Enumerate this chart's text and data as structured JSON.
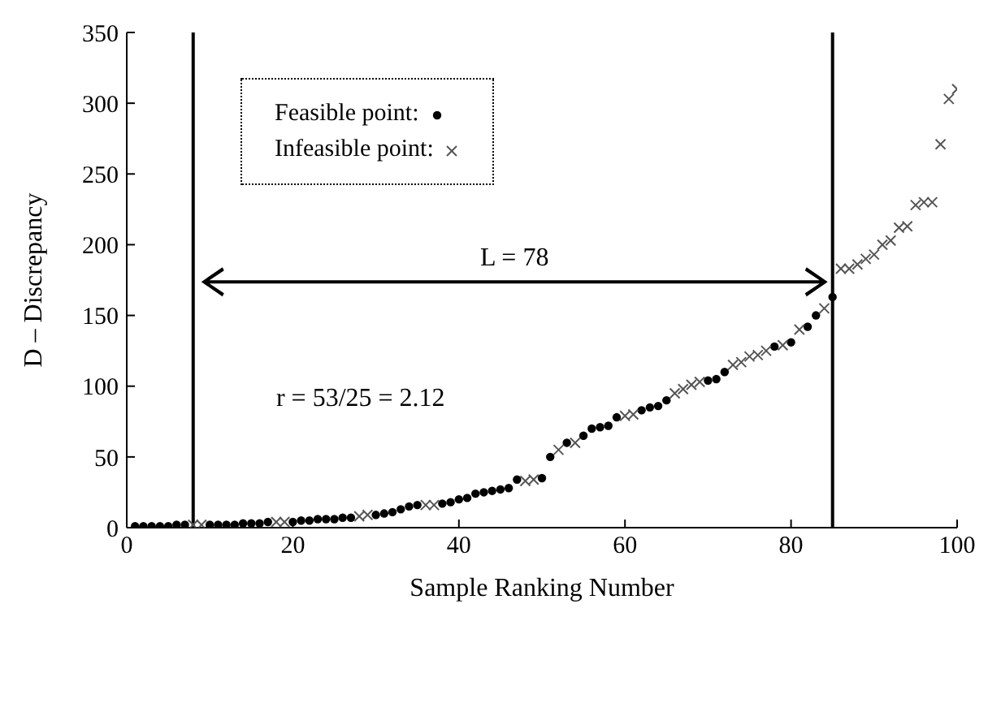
{
  "chart_data": {
    "type": "scatter",
    "xlabel": "Sample Ranking Number",
    "ylabel": "D – Discrepancy",
    "xlim": [
      0,
      100
    ],
    "xticks": [
      0,
      20,
      40,
      60,
      80,
      100
    ],
    "ylim": [
      0,
      350
    ],
    "yticks": [
      0,
      50,
      100,
      150,
      200,
      250,
      300,
      350
    ],
    "grid": false,
    "legend": "top left",
    "series": [
      {
        "name": "Feasible point:",
        "color": "#000000",
        "marker": "circle",
        "x": [
          1,
          2,
          3,
          4,
          5,
          6,
          7,
          10,
          11,
          12,
          13,
          14,
          15,
          16,
          17,
          20,
          21,
          22,
          23,
          24,
          25,
          26,
          27,
          30,
          31,
          32,
          33,
          34,
          35,
          38,
          39,
          40,
          41,
          42,
          43,
          44,
          45,
          46,
          47,
          50,
          51,
          53,
          55,
          56,
          57,
          58,
          59,
          62,
          63,
          64,
          65,
          70,
          71,
          72,
          78,
          80,
          82,
          83,
          85
        ],
        "values": [
          1,
          1,
          1,
          1,
          1,
          2,
          2,
          2,
          2,
          2,
          2,
          3,
          3,
          3,
          4,
          4,
          5,
          5,
          6,
          6,
          6,
          7,
          7,
          9,
          10,
          11,
          13,
          15,
          16,
          17,
          18,
          20,
          21,
          24,
          25,
          26,
          27,
          28,
          34,
          35,
          50,
          60,
          65,
          70,
          71,
          72,
          78,
          83,
          85,
          86,
          90,
          104,
          105,
          110,
          128,
          131,
          142,
          150,
          163
        ]
      },
      {
        "name": "Infeasible point:",
        "color": "#555555",
        "marker": "cross",
        "x": [
          8,
          9,
          18,
          19,
          28,
          29,
          36,
          37,
          48,
          49,
          52,
          54,
          60,
          61,
          66,
          67,
          68,
          69,
          73,
          74,
          75,
          76,
          77,
          79,
          81,
          84,
          86,
          87,
          88,
          89,
          90,
          91,
          92,
          93,
          94,
          95,
          96,
          97,
          98,
          99,
          100
        ],
        "values": [
          2,
          2,
          4,
          4,
          8,
          9,
          16,
          16,
          33,
          34,
          55,
          60,
          79,
          80,
          95,
          98,
          101,
          103,
          115,
          117,
          121,
          122,
          125,
          129,
          140,
          155,
          183,
          183,
          186,
          190,
          193,
          200,
          203,
          212,
          213,
          228,
          230,
          230,
          271,
          303,
          310
        ]
      }
    ],
    "ref_lines": [
      {
        "axis": "x",
        "value": 8,
        "color": "#000000"
      },
      {
        "axis": "x",
        "value": 85,
        "color": "#000000"
      }
    ],
    "annotations": [
      "L = 78",
      "r = 53/25 = 2.12"
    ]
  }
}
